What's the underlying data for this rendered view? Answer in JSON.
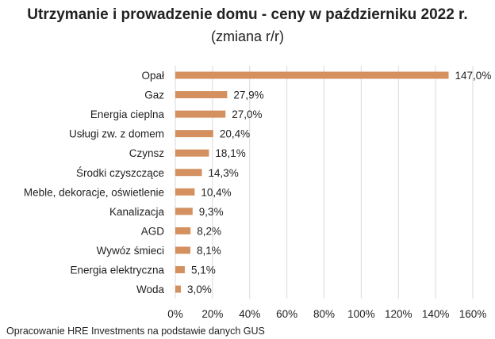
{
  "chart_data": {
    "type": "bar",
    "orientation": "horizontal",
    "title": "Utrzymanie i prowadzenie domu - ceny w październiku 2022 r.",
    "subtitle": "(zmiana r/r)",
    "categories": [
      "Opał",
      "Gaz",
      "Energia cieplna",
      "Usługi zw. z domem",
      "Czynsz",
      "Środki czyszczące",
      "Meble, dekoracje, oświetlenie",
      "Kanalizacja",
      "AGD",
      "Wywóz śmieci",
      "Energia elektryczna",
      "Woda"
    ],
    "values": [
      147.0,
      27.9,
      27.0,
      20.4,
      18.1,
      14.3,
      10.4,
      9.3,
      8.2,
      8.1,
      5.1,
      3.0
    ],
    "data_labels": [
      "147,0%",
      "27,9%",
      "27,0%",
      "20,4%",
      "18,1%",
      "14,3%",
      "10,4%",
      "9,3%",
      "8,2%",
      "8,1%",
      "5,1%",
      "3,0%"
    ],
    "xlim": [
      0,
      160
    ],
    "x_ticks": [
      0,
      20,
      40,
      60,
      80,
      100,
      120,
      140,
      160
    ],
    "x_tick_labels": [
      "0%",
      "20%",
      "40%",
      "60%",
      "80%",
      "100%",
      "120%",
      "140%",
      "160%"
    ],
    "grid": "vertical",
    "bar_color": "#D4915F",
    "source": "Opracowanie HRE Investments na podstawie danych GUS"
  }
}
